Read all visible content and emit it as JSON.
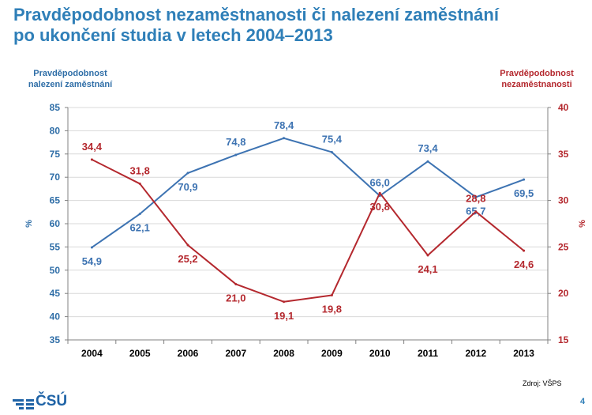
{
  "title_line1": "Pravděpodobnost nezaměstnanosti či nalezení zaměstnání",
  "title_line2": "po ukončení studia v letech 2004–2013",
  "source": "Zdroj: VŠPS",
  "page_number": "4",
  "logo_text": "ČSÚ",
  "colors": {
    "employment": "#3d73b2",
    "unemployment": "#b4282e",
    "title": "#2f7fb8"
  },
  "chart_data": {
    "type": "line",
    "categories": [
      "2004",
      "2005",
      "2006",
      "2007",
      "2008",
      "2009",
      "2010",
      "2011",
      "2012",
      "2013"
    ],
    "left_axis": {
      "label_line1": "Pravděpodobnost",
      "label_line2": "nalezení zaměstnání",
      "unit": "%",
      "ylim": [
        35,
        85
      ],
      "ticks": [
        35,
        40,
        45,
        50,
        55,
        60,
        65,
        70,
        75,
        80,
        85
      ]
    },
    "right_axis": {
      "label_line1": "Pravděpodobnost",
      "label_line2": "nezaměstnanosti",
      "unit": "%",
      "ylim": [
        15,
        40
      ],
      "ticks": [
        15,
        20,
        25,
        30,
        35,
        40
      ]
    },
    "series": [
      {
        "axis": "left",
        "color": "#3d73b2",
        "values": [
          54.9,
          62.1,
          70.9,
          74.8,
          78.4,
          75.4,
          66.0,
          73.4,
          65.7,
          69.5
        ],
        "labels": [
          "54,9",
          "62,1",
          "70,9",
          "74,8",
          "78,4",
          "75,4",
          "66,0",
          "73,4",
          "65,7",
          "69,5"
        ]
      },
      {
        "axis": "right",
        "color": "#b4282e",
        "values": [
          34.4,
          31.8,
          25.2,
          21.0,
          19.1,
          19.8,
          30.8,
          24.1,
          28.8,
          24.6
        ],
        "labels": [
          "34,4",
          "31,8",
          "25,2",
          "21,0",
          "19,1",
          "19,8",
          "30,8",
          "24,1",
          "28,8",
          "24,6"
        ]
      }
    ],
    "grid": "horizontal",
    "legend": "none"
  }
}
